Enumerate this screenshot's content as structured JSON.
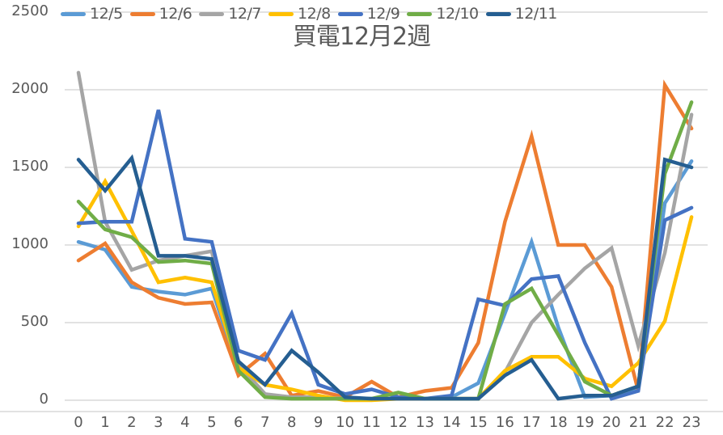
{
  "chart_data": {
    "type": "line",
    "title": "買電12月2週",
    "xlabel": "",
    "ylabel": "",
    "ylim": [
      0,
      2500
    ],
    "yticks": [
      0,
      500,
      1000,
      1500,
      2000,
      2500
    ],
    "grid": true,
    "legend_position": "top",
    "categories": [
      "0",
      "1",
      "2",
      "3",
      "4",
      "5",
      "6",
      "7",
      "8",
      "9",
      "10",
      "11",
      "12",
      "13",
      "14",
      "15",
      "16",
      "17",
      "18",
      "19",
      "20",
      "21",
      "22",
      "23"
    ],
    "series": [
      {
        "name": "12/5",
        "color": "#5B9BD5",
        "values": [
          1020,
          970,
          730,
          700,
          680,
          720,
          200,
          30,
          20,
          20,
          10,
          10,
          10,
          10,
          20,
          110,
          560,
          1020,
          470,
          20,
          30,
          70,
          1270,
          1540
        ]
      },
      {
        "name": "12/6",
        "color": "#ED7D31",
        "values": [
          900,
          1010,
          760,
          660,
          620,
          630,
          160,
          300,
          30,
          60,
          20,
          120,
          20,
          60,
          80,
          370,
          1150,
          1700,
          1000,
          1000,
          730,
          60,
          2030,
          1750
        ]
      },
      {
        "name": "12/7",
        "color": "#A5A5A5",
        "values": [
          2110,
          1150,
          840,
          900,
          930,
          960,
          230,
          40,
          20,
          20,
          10,
          10,
          10,
          10,
          10,
          10,
          180,
          500,
          680,
          850,
          980,
          350,
          950,
          1840
        ]
      },
      {
        "name": "12/8",
        "color": "#FFC000",
        "values": [
          1120,
          1410,
          1090,
          760,
          790,
          760,
          210,
          100,
          70,
          30,
          0,
          0,
          10,
          10,
          10,
          10,
          190,
          280,
          280,
          140,
          90,
          240,
          510,
          1180
        ]
      },
      {
        "name": "12/9",
        "color": "#4472C4",
        "values": [
          1140,
          1150,
          1150,
          1870,
          1040,
          1020,
          320,
          260,
          560,
          100,
          40,
          70,
          20,
          10,
          30,
          650,
          610,
          780,
          800,
          370,
          10,
          60,
          1160,
          1240
        ]
      },
      {
        "name": "12/10",
        "color": "#70AD47",
        "values": [
          1280,
          1100,
          1050,
          890,
          900,
          880,
          190,
          20,
          10,
          10,
          10,
          10,
          50,
          10,
          10,
          10,
          620,
          720,
          420,
          120,
          30,
          90,
          1460,
          1920
        ]
      },
      {
        "name": "12/11",
        "color": "#255E91",
        "values": [
          1550,
          1350,
          1560,
          930,
          930,
          910,
          250,
          100,
          320,
          180,
          20,
          10,
          10,
          10,
          10,
          10,
          160,
          260,
          10,
          30,
          30,
          90,
          1550,
          1500
        ]
      }
    ]
  }
}
